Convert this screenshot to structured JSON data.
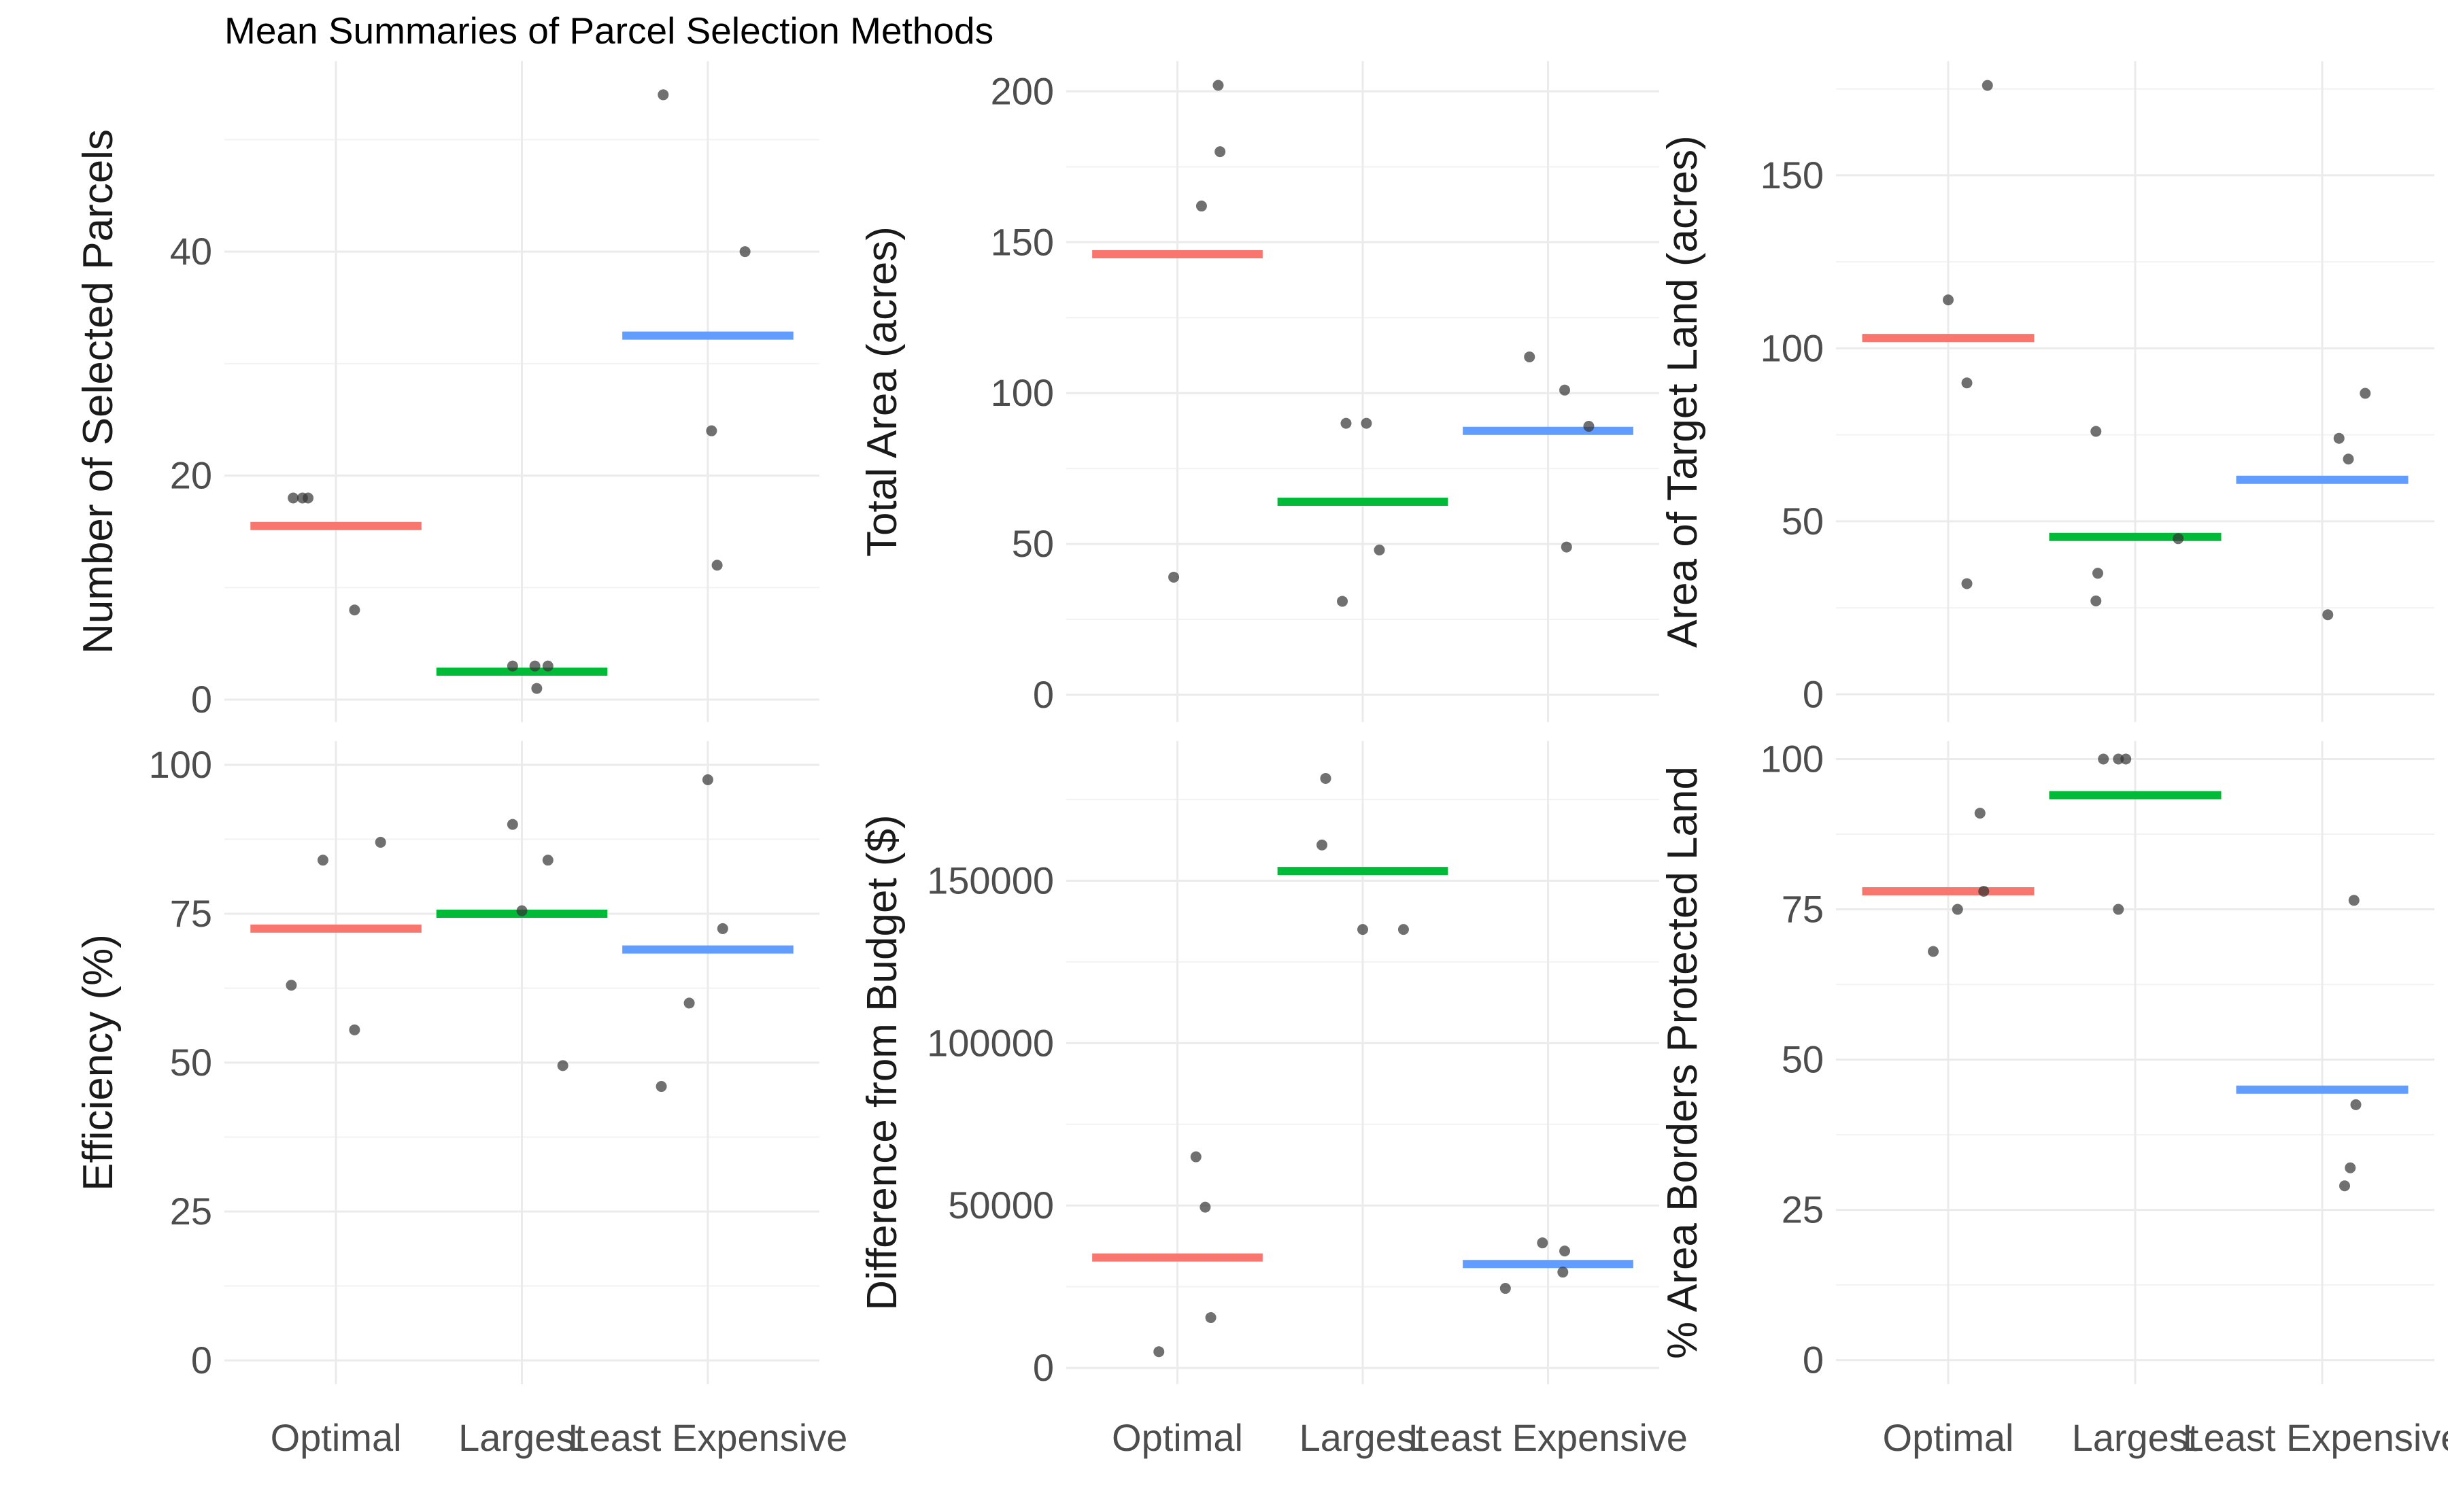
{
  "title": "Mean Summaries of Parcel Selection Methods",
  "colors": {
    "Optimal": "#F8766D",
    "Largest": "#00BA38",
    "Least Expensive": "#619CFF",
    "points": "#333333",
    "grid": "#EBEBEB"
  },
  "chart_data": [
    {
      "type": "scatter",
      "categories": [
        "Optimal",
        "Largest",
        "Least Expensive"
      ],
      "ylabel": "Number of Selected Parcels",
      "xlabel": "",
      "ylim": [
        -2,
        57
      ],
      "yticks": [
        0,
        20,
        40
      ],
      "show_xtick_labels": false,
      "means": [
        15.5,
        2.5,
        32.5
      ],
      "points": [
        [
          18,
          18,
          18,
          8
        ],
        [
          3,
          3,
          3,
          1
        ],
        [
          54,
          40,
          24,
          12
        ]
      ]
    },
    {
      "type": "scatter",
      "categories": [
        "Optimal",
        "Largest",
        "Least Expensive"
      ],
      "ylabel": "Total Area (acres)",
      "xlabel": "",
      "ylim": [
        -9,
        210
      ],
      "yticks": [
        0,
        50,
        100,
        150,
        200
      ],
      "show_xtick_labels": false,
      "means": [
        146,
        64,
        87.5
      ],
      "points": [
        [
          202,
          180,
          162,
          39
        ],
        [
          90,
          90,
          48,
          31
        ],
        [
          112,
          101,
          89,
          49
        ]
      ]
    },
    {
      "type": "scatter",
      "categories": [
        "Optimal",
        "Largest",
        "Least Expensive"
      ],
      "ylabel": "Area of Target Land (acres)",
      "xlabel": "",
      "ylim": [
        -8,
        183
      ],
      "yticks": [
        0,
        50,
        100,
        150
      ],
      "show_xtick_labels": false,
      "means": [
        103,
        45.5,
        62
      ],
      "points": [
        [
          176,
          114,
          90,
          32
        ],
        [
          76,
          35,
          27,
          45
        ],
        [
          87,
          74,
          68,
          23
        ]
      ]
    },
    {
      "type": "scatter",
      "categories": [
        "Optimal",
        "Largest",
        "Least Expensive"
      ],
      "ylabel": "Efficiency (%)",
      "xlabel": "",
      "ylim": [
        -4,
        104
      ],
      "yticks": [
        0,
        25,
        50,
        75,
        100
      ],
      "show_xtick_labels": true,
      "means": [
        72.5,
        75,
        69
      ],
      "points": [
        [
          87,
          84,
          63,
          55.5
        ],
        [
          90,
          84,
          75.5,
          49.5
        ],
        [
          97.5,
          72.5,
          60,
          46
        ]
      ]
    },
    {
      "type": "scatter",
      "categories": [
        "Optimal",
        "Largest",
        "Least Expensive"
      ],
      "ylabel": "Difference from Budget ($)",
      "xlabel": "",
      "ylim": [
        -5000,
        193000
      ],
      "yticks": [
        0,
        50000,
        100000,
        150000
      ],
      "show_xtick_labels": true,
      "means": [
        34000,
        153000,
        32000
      ],
      "points": [
        [
          65000,
          49500,
          15500,
          5000
        ],
        [
          181500,
          161000,
          135000,
          135000
        ],
        [
          38500,
          36000,
          29500,
          24500
        ]
      ]
    },
    {
      "type": "scatter",
      "categories": [
        "Optimal",
        "Largest",
        "Least Expensive"
      ],
      "ylabel": "% Area Borders Protected Land",
      "xlabel": "",
      "ylim": [
        -4,
        103
      ],
      "yticks": [
        0,
        25,
        50,
        75,
        100
      ],
      "show_xtick_labels": true,
      "means": [
        78,
        94,
        45
      ],
      "points": [
        [
          91,
          78,
          75,
          68
        ],
        [
          100,
          100,
          100,
          75
        ],
        [
          76.5,
          42.5,
          32,
          29
        ]
      ]
    }
  ]
}
